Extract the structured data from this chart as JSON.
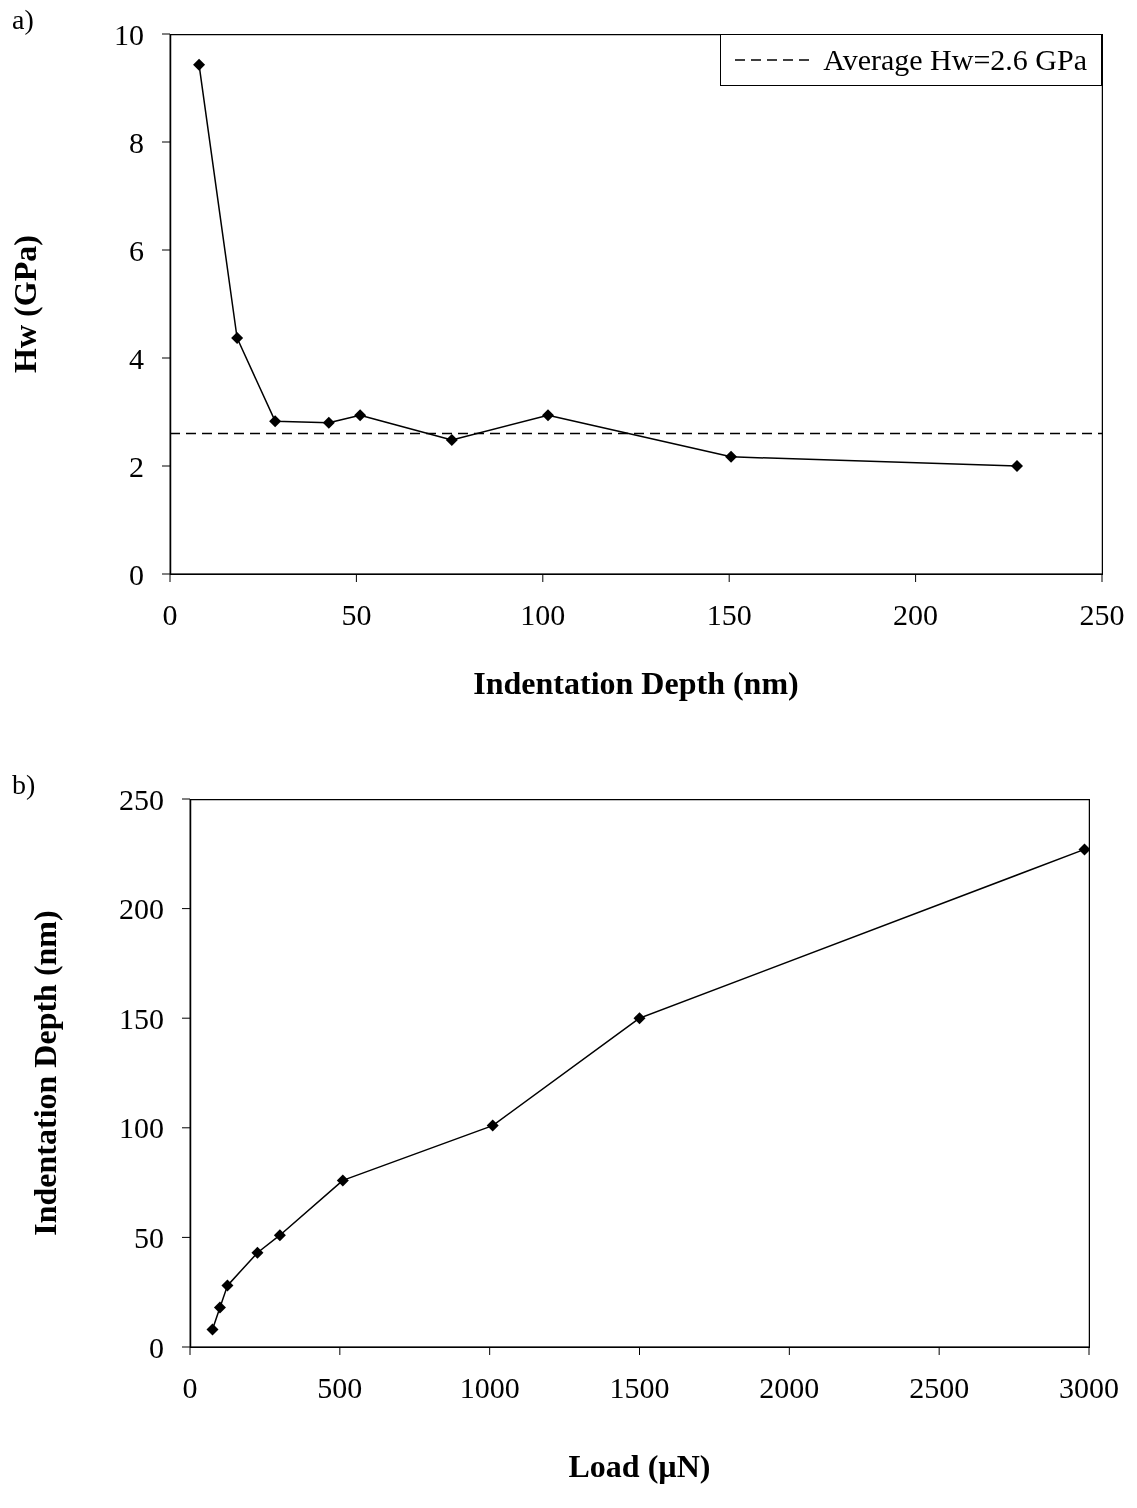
{
  "chart_data": [
    {
      "type": "line",
      "annotations": [
        "a)"
      ],
      "xlabel": "Indentation Depth (nm)",
      "ylabel": "Hw (GPa)",
      "x": [
        7.8,
        18,
        28.2,
        42.6,
        51,
        75.6,
        101.4,
        150.5,
        227.2
      ],
      "series": [
        {
          "color": "#000000",
          "values": [
            9.43,
            4.37,
            2.83,
            2.8,
            2.94,
            2.48,
            2.94,
            2.17,
            2.0
          ]
        }
      ],
      "xlim": [
        0,
        250
      ],
      "xticks": [
        0,
        50,
        100,
        150,
        200,
        250
      ],
      "ylim": [
        0,
        10
      ],
      "yticks": [
        0,
        2,
        4,
        6,
        8,
        10
      ],
      "marker": "diamond",
      "line_style": "solid",
      "legend": "top right",
      "ref_lines": [
        {
          "axis": "y",
          "value": 2.6,
          "label": "Average Hw=2.6 GPa",
          "color": "#000000",
          "line_style": "dashed"
        }
      ]
    },
    {
      "type": "line",
      "annotations": [
        "b)"
      ],
      "xlabel": "Load (µN)",
      "ylabel": "Indentation Depth (nm)",
      "x": [
        75,
        100,
        125,
        225,
        300,
        510,
        1010,
        1500,
        2985
      ],
      "series": [
        {
          "color": "#000000",
          "values": [
            8,
            18,
            28,
            43,
            51,
            76,
            101,
            150,
            227
          ]
        }
      ],
      "xlim": [
        0,
        3000
      ],
      "xticks": [
        0,
        500,
        1000,
        1500,
        2000,
        2500,
        3000
      ],
      "ylim": [
        0,
        250
      ],
      "yticks": [
        0,
        50,
        100,
        150,
        200,
        250
      ],
      "marker": "diamond",
      "line_style": "solid"
    }
  ]
}
